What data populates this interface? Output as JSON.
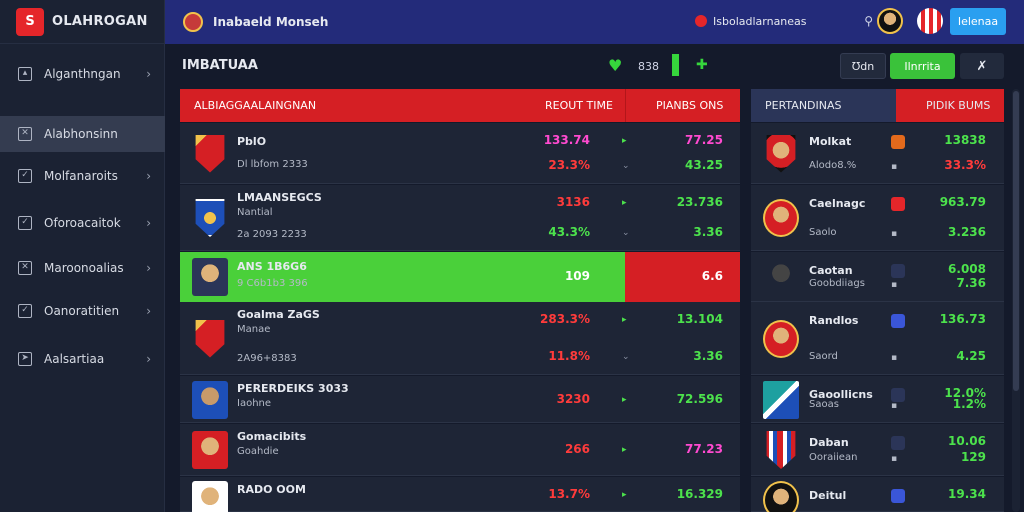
{
  "brand": {
    "name": "OLAHROGAN"
  },
  "header": {
    "title": "Inabaeld Monseh",
    "search_text": "Isboladlarnaneas",
    "login_label": "Ielenaa"
  },
  "sidebar": {
    "items": [
      {
        "label": "Alganthngan",
        "icon": "chart-icon",
        "active": false
      },
      {
        "label": "Alabhonsinn",
        "icon": "close-icon",
        "active": true
      },
      {
        "label": "Molfanaroits",
        "icon": "check-icon",
        "active": false
      },
      {
        "label": "Oforoacaitok",
        "icon": "check-icon",
        "active": false
      },
      {
        "label": "Maroonoalias",
        "icon": "close-icon",
        "active": false
      },
      {
        "label": "Oanoratitien",
        "icon": "check-icon",
        "active": false
      },
      {
        "label": "Aalsartiaa",
        "icon": "pin-icon",
        "active": false
      }
    ]
  },
  "page": {
    "title": "IMBATUAA",
    "count": "838",
    "btn_a": "Ʊdn",
    "btn_b": "Ilnrrita",
    "btn_c": "✗"
  },
  "main_table": {
    "headers": {
      "team": "ALBIAGGAALAINGNAN",
      "col1": "REOUT TIME",
      "col2": "PIANBS ONS"
    },
    "rows": [
      {
        "name": "PblO",
        "sub": "Dl lbfom 2333",
        "v1a": "133.74",
        "v1b": "23.3%",
        "v2a": "77.25",
        "v2b": "43.25",
        "c1a": "pink",
        "c1b": "red",
        "c2a": "pink",
        "c2b": "green"
      },
      {
        "name": "LMAANSEGCS",
        "sub": "Nantial",
        "sub2": "2a 2093 2233",
        "v1a": "3136",
        "v1b": "43.3%",
        "v2a": "23.736",
        "v2b": "3.36",
        "c1a": "red",
        "c1b": "green",
        "c2a": "green",
        "c2b": "green"
      },
      {
        "name": "ANS 1B6G6",
        "sub": "9 C6b1b3 396",
        "v1a": "109",
        "v2a": "6.6",
        "active": true
      },
      {
        "name": "Goalma ZaGS",
        "sub": "Manae",
        "sub2": "2A96+8383",
        "v1a": "283.3%",
        "v1b": "11.8%",
        "v2a": "13.104",
        "v2b": "3.36",
        "c1a": "red",
        "c1b": "red",
        "c2a": "green",
        "c2b": "green"
      },
      {
        "name": "PERERDEIKS 3033",
        "sub": "Iaohne",
        "v1a": "3230",
        "v2a": "72.596",
        "c1a": "red",
        "c2a": "green"
      },
      {
        "name": "Gomacibits",
        "sub": "Goahdie",
        "v1a": "266",
        "v2a": "77.23",
        "c1a": "red",
        "c2a": "pink"
      },
      {
        "name": "RADO OOM",
        "sub": "",
        "v1a": "13.7%",
        "v2a": "16.329",
        "c1a": "red",
        "c2a": "green"
      }
    ]
  },
  "side_table": {
    "headers": {
      "left": "PERTANDINAS",
      "right": "PIDIK BUMS"
    },
    "rows": [
      {
        "name": "Molkat",
        "sub": "Alodo8.%",
        "va": "13838",
        "vb": "33.3%",
        "ic": "#e36a1c",
        "ca": "green",
        "cb": "red"
      },
      {
        "name": "Caelnagc",
        "sub": "Saolo",
        "va": "963.79",
        "vb": "3.236",
        "ic": "#e5262a",
        "ca": "green",
        "cb": "green"
      },
      {
        "name": "Caotan",
        "sub": "Goobdiiags",
        "va": "6.008",
        "vb": "7.36",
        "ic": "#2b3558",
        "ca": "green",
        "cb": "green"
      },
      {
        "name": "Randlos",
        "sub": "Saord",
        "va": "136.73",
        "vb": "4.25",
        "ic": "#3a56d8",
        "ca": "green",
        "cb": "green"
      },
      {
        "name": "Gaoollicns",
        "sub": "Saoas",
        "va": "12.0%",
        "vb": "1.2%",
        "ic": "#2b3558",
        "ca": "green",
        "cb": "green"
      },
      {
        "name": "Daban",
        "sub": "Ooraiiean",
        "va": "10.06",
        "vb": "129",
        "ic": "#2b3558",
        "ca": "green",
        "cb": "green"
      },
      {
        "name": "Deitul",
        "sub": "",
        "va": "19.34",
        "vb": "",
        "ic": "#3a56d8",
        "ca": "green",
        "cb": "green"
      }
    ]
  }
}
